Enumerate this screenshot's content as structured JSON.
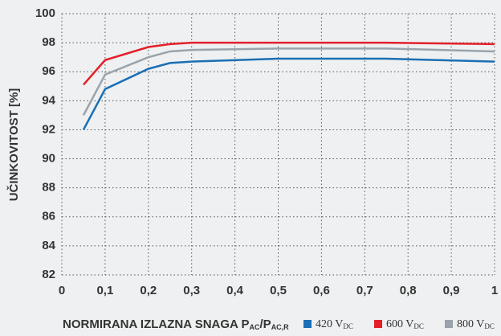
{
  "chart_data": {
    "type": "line",
    "ylabel": "UČINKOVITOST [%]",
    "xlabel": {
      "text": "NORMIRANA IZLAZNA SNAGA P",
      "sub1": "AC",
      "mid": "/P",
      "sub2": "AC,R"
    },
    "x": [
      0.05,
      0.1,
      0.2,
      0.25,
      0.3,
      0.5,
      0.75,
      1
    ],
    "series": [
      {
        "name": "420 V",
        "sub": "DC",
        "color": "#1a6fb5",
        "values": [
          92.0,
          94.8,
          96.2,
          96.6,
          96.7,
          96.9,
          96.9,
          96.7
        ]
      },
      {
        "name": "600 V",
        "sub": "DC",
        "color": "#e3202a",
        "values": [
          95.1,
          96.8,
          97.7,
          97.9,
          98.0,
          98.0,
          98.0,
          97.9
        ]
      },
      {
        "name": "800 V",
        "sub": "DC",
        "color": "#9aa3ab",
        "values": [
          93.0,
          95.8,
          97.0,
          97.4,
          97.5,
          97.6,
          97.6,
          97.4
        ]
      }
    ],
    "xlim": [
      0,
      1
    ],
    "xticks": [
      0,
      {
        "value": 0.1,
        "label": "0,1"
      },
      {
        "value": 0.2,
        "label": "0,2"
      },
      {
        "value": 0.3,
        "label": "0,3"
      },
      {
        "value": 0.4,
        "label": "0,4"
      },
      {
        "value": 0.5,
        "label": "0,5"
      },
      {
        "value": 0.6,
        "label": "0,6"
      },
      {
        "value": 0.7,
        "label": "0,7"
      },
      {
        "value": 0.8,
        "label": "0,8"
      },
      {
        "value": 0.9,
        "label": "0,9"
      },
      1
    ],
    "ylim": [
      82,
      100
    ],
    "yticks": [
      82,
      84,
      86,
      88,
      90,
      92,
      94,
      96,
      98,
      100
    ],
    "grid": true
  }
}
